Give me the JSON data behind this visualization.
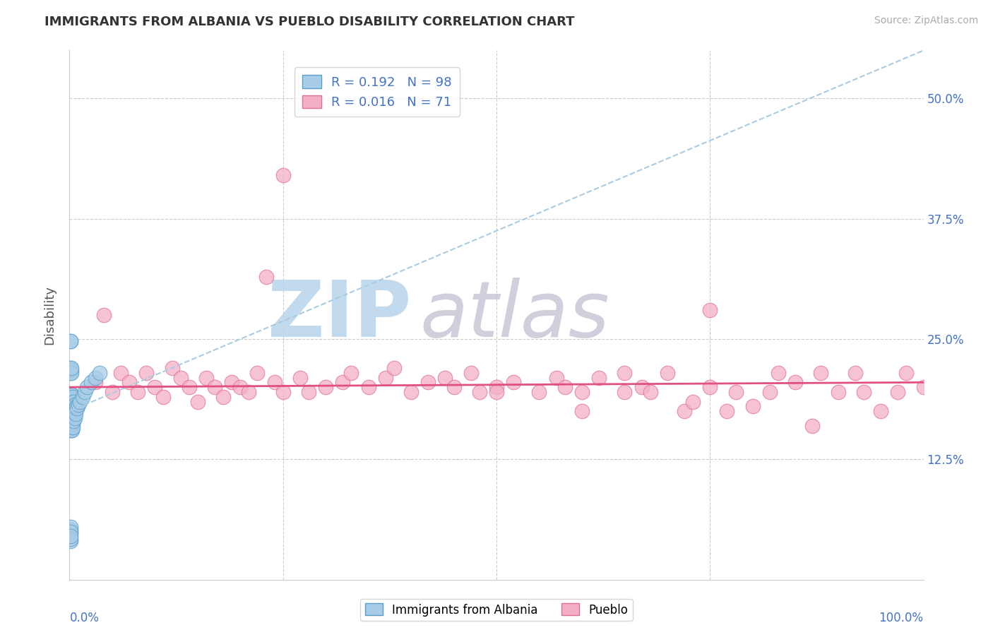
{
  "title": "IMMIGRANTS FROM ALBANIA VS PUEBLO DISABILITY CORRELATION CHART",
  "source": "Source: ZipAtlas.com",
  "ylabel": "Disability",
  "yticks": [
    0.0,
    0.125,
    0.25,
    0.375,
    0.5
  ],
  "ytick_labels": [
    "",
    "12.5%",
    "25.0%",
    "37.5%",
    "50.0%"
  ],
  "xlim": [
    0.0,
    1.0
  ],
  "ylim": [
    0.0,
    0.55
  ],
  "legend_r1": "R = 0.192",
  "legend_n1": "N = 98",
  "legend_r2": "R = 0.016",
  "legend_n2": "N = 71",
  "series1_color": "#a8cce8",
  "series2_color": "#f4afc8",
  "series1_edge": "#5a9ec8",
  "series2_edge": "#e07090",
  "watermark": "ZIPatlas",
  "watermark_color_zip": "#b8d4ea",
  "watermark_color_atlas": "#c8c8d8",
  "background": "#ffffff",
  "grid_color": "#cccccc",
  "blue_trend_color": "#aacce0",
  "pink_trend_color": "#e05080",
  "blue_points_x": [
    0.001,
    0.001,
    0.001,
    0.001,
    0.001,
    0.001,
    0.001,
    0.001,
    0.001,
    0.001,
    0.001,
    0.001,
    0.001,
    0.001,
    0.001,
    0.001,
    0.001,
    0.001,
    0.001,
    0.001,
    0.002,
    0.002,
    0.002,
    0.002,
    0.002,
    0.002,
    0.002,
    0.002,
    0.002,
    0.002,
    0.002,
    0.002,
    0.002,
    0.002,
    0.002,
    0.002,
    0.002,
    0.002,
    0.002,
    0.002,
    0.003,
    0.003,
    0.003,
    0.003,
    0.003,
    0.003,
    0.003,
    0.003,
    0.003,
    0.003,
    0.003,
    0.003,
    0.003,
    0.003,
    0.003,
    0.004,
    0.004,
    0.004,
    0.004,
    0.004,
    0.004,
    0.004,
    0.004,
    0.004,
    0.005,
    0.005,
    0.005,
    0.005,
    0.005,
    0.006,
    0.006,
    0.006,
    0.007,
    0.007,
    0.008,
    0.009,
    0.01,
    0.012,
    0.015,
    0.018,
    0.02,
    0.025,
    0.03,
    0.035,
    0.001,
    0.001,
    0.001,
    0.002,
    0.001,
    0.001,
    0.001,
    0.001,
    0.001,
    0.001,
    0.001,
    0.002,
    0.002,
    0.001
  ],
  "blue_points_y": [
    0.175,
    0.18,
    0.17,
    0.185,
    0.16,
    0.19,
    0.165,
    0.178,
    0.172,
    0.168,
    0.182,
    0.174,
    0.176,
    0.163,
    0.188,
    0.155,
    0.192,
    0.158,
    0.183,
    0.171,
    0.18,
    0.175,
    0.168,
    0.185,
    0.172,
    0.178,
    0.162,
    0.19,
    0.158,
    0.182,
    0.176,
    0.165,
    0.188,
    0.17,
    0.155,
    0.193,
    0.16,
    0.184,
    0.174,
    0.169,
    0.178,
    0.172,
    0.185,
    0.165,
    0.18,
    0.17,
    0.188,
    0.162,
    0.175,
    0.158,
    0.182,
    0.168,
    0.192,
    0.155,
    0.176,
    0.18,
    0.172,
    0.185,
    0.165,
    0.178,
    0.162,
    0.19,
    0.158,
    0.175,
    0.178,
    0.17,
    0.185,
    0.165,
    0.18,
    0.175,
    0.168,
    0.182,
    0.178,
    0.172,
    0.18,
    0.178,
    0.182,
    0.185,
    0.19,
    0.195,
    0.2,
    0.205,
    0.21,
    0.215,
    0.248,
    0.22,
    0.215,
    0.218,
    0.048,
    0.052,
    0.055,
    0.05,
    0.04,
    0.042,
    0.045,
    0.215,
    0.22,
    0.248
  ],
  "pink_points_x": [
    0.03,
    0.04,
    0.05,
    0.06,
    0.07,
    0.08,
    0.09,
    0.1,
    0.11,
    0.12,
    0.13,
    0.14,
    0.15,
    0.16,
    0.17,
    0.18,
    0.19,
    0.2,
    0.21,
    0.22,
    0.23,
    0.24,
    0.25,
    0.27,
    0.28,
    0.3,
    0.32,
    0.33,
    0.35,
    0.37,
    0.38,
    0.4,
    0.42,
    0.44,
    0.45,
    0.47,
    0.48,
    0.5,
    0.52,
    0.55,
    0.57,
    0.58,
    0.6,
    0.62,
    0.65,
    0.67,
    0.68,
    0.7,
    0.72,
    0.73,
    0.75,
    0.77,
    0.78,
    0.8,
    0.82,
    0.83,
    0.85,
    0.87,
    0.88,
    0.9,
    0.92,
    0.93,
    0.95,
    0.97,
    0.98,
    1.0,
    0.25,
    0.5,
    0.6,
    0.65,
    0.75
  ],
  "pink_points_y": [
    0.205,
    0.275,
    0.195,
    0.215,
    0.205,
    0.195,
    0.215,
    0.2,
    0.19,
    0.22,
    0.21,
    0.2,
    0.185,
    0.21,
    0.2,
    0.19,
    0.205,
    0.2,
    0.195,
    0.215,
    0.315,
    0.205,
    0.195,
    0.21,
    0.195,
    0.2,
    0.205,
    0.215,
    0.2,
    0.21,
    0.22,
    0.195,
    0.205,
    0.21,
    0.2,
    0.215,
    0.195,
    0.2,
    0.205,
    0.195,
    0.21,
    0.2,
    0.195,
    0.21,
    0.215,
    0.2,
    0.195,
    0.215,
    0.175,
    0.185,
    0.2,
    0.175,
    0.195,
    0.18,
    0.195,
    0.215,
    0.205,
    0.16,
    0.215,
    0.195,
    0.215,
    0.195,
    0.175,
    0.195,
    0.215,
    0.2,
    0.42,
    0.195,
    0.175,
    0.195,
    0.28
  ],
  "pink_trend_y_start": 0.2,
  "pink_trend_y_end": 0.205,
  "blue_trend_x_start": 0.0,
  "blue_trend_y_start": 0.175,
  "blue_trend_x_end": 1.0,
  "blue_trend_y_end": 0.55
}
